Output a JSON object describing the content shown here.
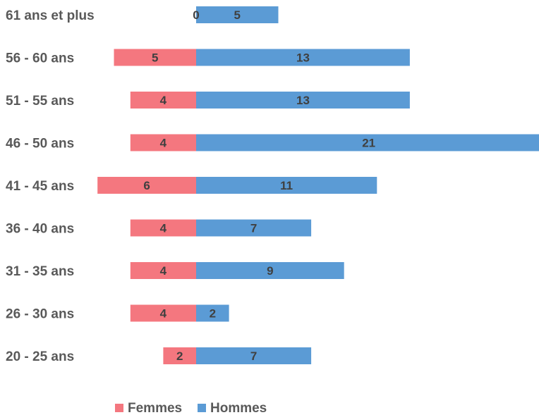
{
  "chart_data": {
    "type": "bar",
    "orientation": "horizontal",
    "stacking": "diverging",
    "categories": [
      "20 - 25 ans",
      "26 - 30 ans",
      "31 - 35 ans",
      "36 - 40 ans",
      "41 - 45 ans",
      "46 - 50 ans",
      "51 - 55 ans",
      "56 - 60 ans",
      "61 ans et plus"
    ],
    "series": [
      {
        "name": "Femmes",
        "color": "#f4777f",
        "values": [
          2,
          4,
          4,
          4,
          6,
          4,
          4,
          5,
          0
        ]
      },
      {
        "name": "Hommes",
        "color": "#5b9bd5",
        "values": [
          7,
          2,
          9,
          7,
          11,
          21,
          13,
          13,
          5
        ]
      }
    ],
    "title": "",
    "xlabel": "",
    "ylabel": "",
    "grid": false,
    "data_labels": true,
    "legend_position": "bottom"
  }
}
